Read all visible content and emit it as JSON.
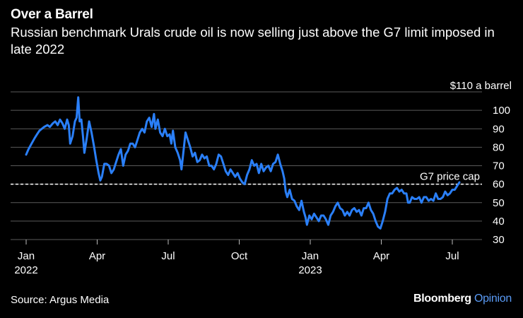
{
  "header": {
    "title": "Over a Barrel",
    "subtitle": "Russian benchmark Urals crude oil is now selling just above the G7 limit imposed in late 2022"
  },
  "footer": {
    "source": "Source: Argus Media",
    "brand_main": "Bloomberg",
    "brand_sub": "Opinion"
  },
  "colors": {
    "background": "#000000",
    "line": "#2a7ff8",
    "grid": "#5a5a5a",
    "text": "#ffffff",
    "brand_accent": "#5a9bf6"
  },
  "chart_data": {
    "type": "line",
    "title": "Over a Barrel",
    "xlabel": "",
    "ylabel": "$ a barrel",
    "ylim": [
      30,
      110
    ],
    "yticks": [
      {
        "value": 110,
        "label": "$110 a barrel"
      },
      {
        "value": 100,
        "label": "100"
      },
      {
        "value": 90,
        "label": "90"
      },
      {
        "value": 80,
        "label": "80"
      },
      {
        "value": 70,
        "label": "70"
      },
      {
        "value": 60,
        "label": "60"
      },
      {
        "value": 50,
        "label": "50"
      },
      {
        "value": 40,
        "label": "40"
      },
      {
        "value": 30,
        "label": "30"
      }
    ],
    "xlim": [
      0,
      18.4
    ],
    "xticks": [
      {
        "month": 0,
        "label": "Jan",
        "sublabel": "2022"
      },
      {
        "month": 3,
        "label": "Apr",
        "sublabel": ""
      },
      {
        "month": 6,
        "label": "Jul",
        "sublabel": ""
      },
      {
        "month": 9,
        "label": "Oct",
        "sublabel": ""
      },
      {
        "month": 12,
        "label": "Jan",
        "sublabel": "2023"
      },
      {
        "month": 15,
        "label": "Apr",
        "sublabel": ""
      },
      {
        "month": 18,
        "label": "Jul",
        "sublabel": ""
      }
    ],
    "reference_line": {
      "value": 60,
      "label": "G7 price cap",
      "style": "dashed"
    },
    "series": [
      {
        "name": "Urals crude",
        "points": [
          [
            0.0,
            76
          ],
          [
            0.1,
            79
          ],
          [
            0.23,
            82
          ],
          [
            0.36,
            85
          ],
          [
            0.46,
            87
          ],
          [
            0.56,
            89
          ],
          [
            0.66,
            90
          ],
          [
            0.76,
            91
          ],
          [
            0.9,
            92
          ],
          [
            1.0,
            91
          ],
          [
            1.13,
            93
          ],
          [
            1.23,
            94
          ],
          [
            1.33,
            92
          ],
          [
            1.43,
            95
          ],
          [
            1.53,
            93
          ],
          [
            1.63,
            90
          ],
          [
            1.73,
            95
          ],
          [
            1.8,
            92
          ],
          [
            1.86,
            82
          ],
          [
            1.96,
            86
          ],
          [
            2.06,
            94
          ],
          [
            2.13,
            96
          ],
          [
            2.2,
            107
          ],
          [
            2.26,
            94
          ],
          [
            2.33,
            95
          ],
          [
            2.4,
            86
          ],
          [
            2.46,
            77
          ],
          [
            2.56,
            85
          ],
          [
            2.66,
            94
          ],
          [
            2.76,
            88
          ],
          [
            2.86,
            81
          ],
          [
            2.96,
            73
          ],
          [
            3.06,
            66
          ],
          [
            3.13,
            62
          ],
          [
            3.2,
            64
          ],
          [
            3.3,
            71
          ],
          [
            3.4,
            71
          ],
          [
            3.5,
            70
          ],
          [
            3.6,
            66
          ],
          [
            3.7,
            68
          ],
          [
            3.8,
            72
          ],
          [
            3.9,
            76
          ],
          [
            4.0,
            79
          ],
          [
            4.1,
            70
          ],
          [
            4.2,
            76
          ],
          [
            4.3,
            78
          ],
          [
            4.4,
            82
          ],
          [
            4.5,
            82
          ],
          [
            4.6,
            80
          ],
          [
            4.7,
            84
          ],
          [
            4.8,
            88
          ],
          [
            4.9,
            90
          ],
          [
            5.0,
            88
          ],
          [
            5.1,
            94
          ],
          [
            5.2,
            96
          ],
          [
            5.3,
            91
          ],
          [
            5.4,
            98
          ],
          [
            5.46,
            90
          ],
          [
            5.56,
            95
          ],
          [
            5.66,
            88
          ],
          [
            5.76,
            86
          ],
          [
            5.86,
            90
          ],
          [
            5.96,
            86
          ],
          [
            6.06,
            87
          ],
          [
            6.13,
            82
          ],
          [
            6.2,
            89
          ],
          [
            6.3,
            80
          ],
          [
            6.4,
            77
          ],
          [
            6.5,
            73
          ],
          [
            6.56,
            68
          ],
          [
            6.63,
            76
          ],
          [
            6.73,
            88
          ],
          [
            6.83,
            84
          ],
          [
            6.93,
            80
          ],
          [
            7.03,
            75
          ],
          [
            7.13,
            77
          ],
          [
            7.23,
            72
          ],
          [
            7.33,
            73
          ],
          [
            7.43,
            76
          ],
          [
            7.53,
            74
          ],
          [
            7.63,
            75
          ],
          [
            7.73,
            70
          ],
          [
            7.83,
            70
          ],
          [
            7.93,
            68
          ],
          [
            8.03,
            71
          ],
          [
            8.13,
            76
          ],
          [
            8.23,
            75
          ],
          [
            8.33,
            71
          ],
          [
            8.43,
            67
          ],
          [
            8.53,
            65
          ],
          [
            8.63,
            68
          ],
          [
            8.73,
            66
          ],
          [
            8.83,
            64
          ],
          [
            8.93,
            66
          ],
          [
            9.03,
            63
          ],
          [
            9.13,
            61
          ],
          [
            9.23,
            60
          ],
          [
            9.33,
            65
          ],
          [
            9.43,
            68
          ],
          [
            9.53,
            73
          ],
          [
            9.63,
            70
          ],
          [
            9.73,
            71
          ],
          [
            9.83,
            66
          ],
          [
            9.93,
            71
          ],
          [
            10.03,
            67
          ],
          [
            10.13,
            69
          ],
          [
            10.23,
            70
          ],
          [
            10.33,
            67
          ],
          [
            10.43,
            71
          ],
          [
            10.53,
            72
          ],
          [
            10.63,
            76
          ],
          [
            10.73,
            71
          ],
          [
            10.83,
            67
          ],
          [
            10.9,
            63
          ],
          [
            10.96,
            56
          ],
          [
            11.03,
            53
          ],
          [
            11.13,
            57
          ],
          [
            11.23,
            52
          ],
          [
            11.33,
            51
          ],
          [
            11.43,
            48
          ],
          [
            11.53,
            46
          ],
          [
            11.63,
            51
          ],
          [
            11.73,
            45
          ],
          [
            11.8,
            42
          ],
          [
            11.86,
            38
          ],
          [
            11.96,
            43
          ],
          [
            12.06,
            41
          ],
          [
            12.16,
            44
          ],
          [
            12.26,
            42
          ],
          [
            12.36,
            40
          ],
          [
            12.46,
            43
          ],
          [
            12.56,
            43
          ],
          [
            12.66,
            41
          ],
          [
            12.76,
            38
          ],
          [
            12.86,
            43
          ],
          [
            12.96,
            45
          ],
          [
            13.06,
            48
          ],
          [
            13.16,
            50
          ],
          [
            13.26,
            47
          ],
          [
            13.36,
            46
          ],
          [
            13.46,
            43
          ],
          [
            13.56,
            45
          ],
          [
            13.66,
            43
          ],
          [
            13.76,
            46
          ],
          [
            13.86,
            47
          ],
          [
            13.96,
            45
          ],
          [
            14.06,
            46
          ],
          [
            14.16,
            43
          ],
          [
            14.26,
            47
          ],
          [
            14.36,
            47
          ],
          [
            14.46,
            50
          ],
          [
            14.56,
            46
          ],
          [
            14.66,
            44
          ],
          [
            14.76,
            40
          ],
          [
            14.86,
            37
          ],
          [
            14.96,
            36
          ],
          [
            15.06,
            40
          ],
          [
            15.16,
            45
          ],
          [
            15.26,
            52
          ],
          [
            15.36,
            55
          ],
          [
            15.46,
            55
          ],
          [
            15.56,
            57
          ],
          [
            15.66,
            58
          ],
          [
            15.76,
            56
          ],
          [
            15.86,
            57
          ],
          [
            15.96,
            55
          ],
          [
            16.06,
            55
          ],
          [
            16.13,
            50
          ],
          [
            16.2,
            50
          ],
          [
            16.3,
            53
          ],
          [
            16.4,
            52
          ],
          [
            16.5,
            52
          ],
          [
            16.6,
            53
          ],
          [
            16.7,
            50
          ],
          [
            16.8,
            53
          ],
          [
            16.9,
            53
          ],
          [
            17.0,
            51
          ],
          [
            17.1,
            52
          ],
          [
            17.2,
            51
          ],
          [
            17.3,
            55
          ],
          [
            17.4,
            52
          ],
          [
            17.5,
            52
          ],
          [
            17.6,
            53
          ],
          [
            17.7,
            56
          ],
          [
            17.8,
            54
          ],
          [
            17.9,
            55
          ],
          [
            18.0,
            57
          ],
          [
            18.1,
            57
          ],
          [
            18.2,
            59
          ],
          [
            18.3,
            61
          ]
        ]
      }
    ]
  }
}
